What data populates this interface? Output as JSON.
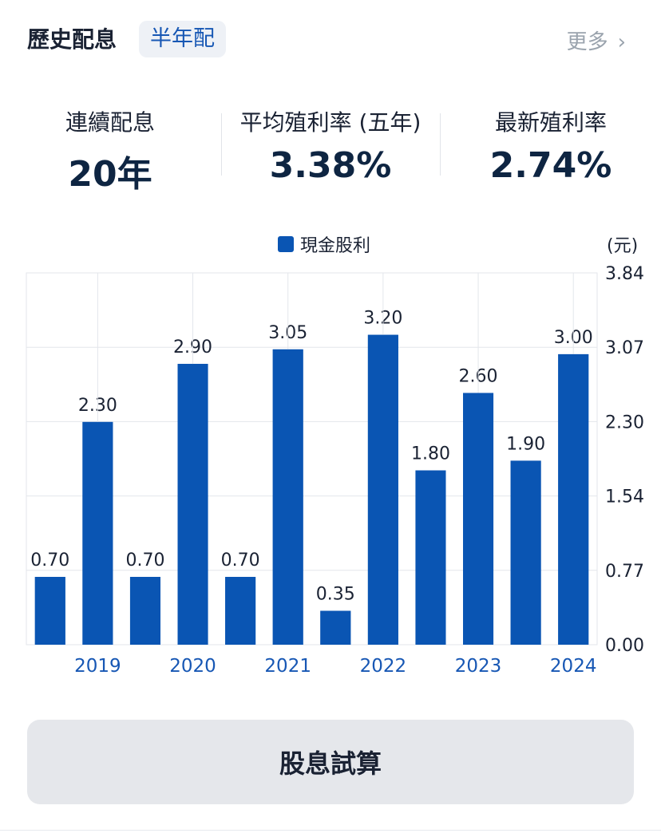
{
  "header": {
    "title": "歷史配息",
    "badge": "半年配",
    "more_label": "更多",
    "more_icon": "chevron-right-icon"
  },
  "stats": [
    {
      "label": "連續配息",
      "value": "20年"
    },
    {
      "label": "平均殖利率 (五年)",
      "value": "3.38%"
    },
    {
      "label": "最新殖利率",
      "value": "2.74%"
    }
  ],
  "legend": {
    "label": "現金股利",
    "color": "#0a55b3"
  },
  "unit_label": "(元)",
  "chart_data": {
    "type": "bar",
    "series": [
      {
        "name": "現金股利",
        "values": [
          0.7,
          2.3,
          0.7,
          2.9,
          0.7,
          3.05,
          0.35,
          3.2,
          1.8,
          2.6,
          1.9,
          3.0
        ],
        "labels": [
          "0.70",
          "2.30",
          "0.70",
          "2.90",
          "0.70",
          "3.05",
          "0.35",
          "3.20",
          "1.80",
          "2.60",
          "1.90",
          "3.00"
        ]
      }
    ],
    "year_ticks": [
      "2019",
      "2020",
      "2021",
      "2022",
      "2023",
      "2024"
    ],
    "y_ticks": [
      "3.84",
      "3.07",
      "2.30",
      "1.54",
      "0.77",
      "0.00"
    ],
    "ylim": [
      0,
      3.84
    ],
    "bar_color": "#0a55b3",
    "tick_color": "#1757b4",
    "grid": true
  },
  "calc_button_label": "股息試算"
}
